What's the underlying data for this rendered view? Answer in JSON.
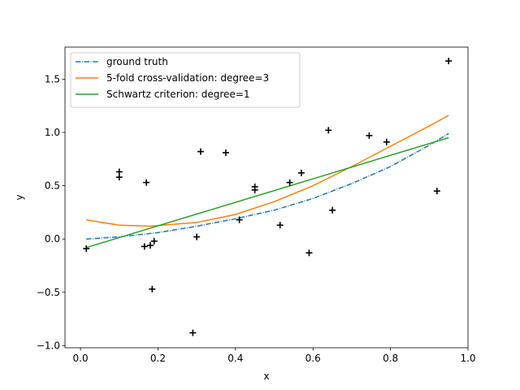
{
  "chart_data": {
    "type": "scatter",
    "title": "",
    "xlabel": "x",
    "ylabel": "y",
    "xlim": [
      -0.04,
      1.0
    ],
    "ylim": [
      -1.02,
      1.8
    ],
    "xticks": [
      0.0,
      0.2,
      0.4,
      0.6,
      0.8,
      1.0
    ],
    "xtick_labels": [
      "0.0",
      "0.2",
      "0.4",
      "0.6",
      "0.8",
      "1.0"
    ],
    "yticks": [
      -1.0,
      -0.5,
      0.0,
      0.5,
      1.0,
      1.5
    ],
    "ytick_labels": [
      "−1.0",
      "−0.5",
      "0.0",
      "0.5",
      "1.0",
      "1.5"
    ],
    "grid": false,
    "legend_position": "upper-left",
    "points": {
      "marker": "+",
      "color": "#000000",
      "x": [
        0.015,
        0.1,
        0.1,
        0.165,
        0.17,
        0.18,
        0.185,
        0.19,
        0.29,
        0.3,
        0.31,
        0.375,
        0.41,
        0.45,
        0.45,
        0.515,
        0.54,
        0.57,
        0.59,
        0.64,
        0.65,
        0.745,
        0.79,
        0.92,
        0.95
      ],
      "y": [
        -0.09,
        0.63,
        0.58,
        -0.07,
        0.53,
        -0.06,
        -0.47,
        -0.02,
        -0.88,
        0.02,
        0.82,
        0.81,
        0.18,
        0.49,
        0.46,
        0.13,
        0.53,
        0.62,
        -0.13,
        1.02,
        0.27,
        0.97,
        0.91,
        0.45,
        1.67
      ]
    },
    "series": [
      {
        "name": "ground truth",
        "color": "#1f77b4",
        "style": "dashdot",
        "x": [
          0.015,
          0.1,
          0.2,
          0.3,
          0.4,
          0.5,
          0.6,
          0.7,
          0.8,
          0.9,
          0.95
        ],
        "y": [
          0.0,
          0.02,
          0.06,
          0.12,
          0.19,
          0.27,
          0.38,
          0.52,
          0.68,
          0.88,
          0.99
        ]
      },
      {
        "name": "5-fold cross-validation: degree=3",
        "color": "#ff7f0e",
        "style": "solid",
        "x": [
          0.015,
          0.1,
          0.18,
          0.3,
          0.4,
          0.5,
          0.6,
          0.7,
          0.8,
          0.9,
          0.95
        ],
        "y": [
          0.18,
          0.13,
          0.12,
          0.155,
          0.23,
          0.35,
          0.5,
          0.68,
          0.87,
          1.06,
          1.16
        ]
      },
      {
        "name": "Schwartz criterion: degree=1",
        "color": "#2ca02c",
        "style": "solid",
        "x": [
          0.015,
          0.95
        ],
        "y": [
          -0.08,
          0.95
        ]
      }
    ]
  }
}
